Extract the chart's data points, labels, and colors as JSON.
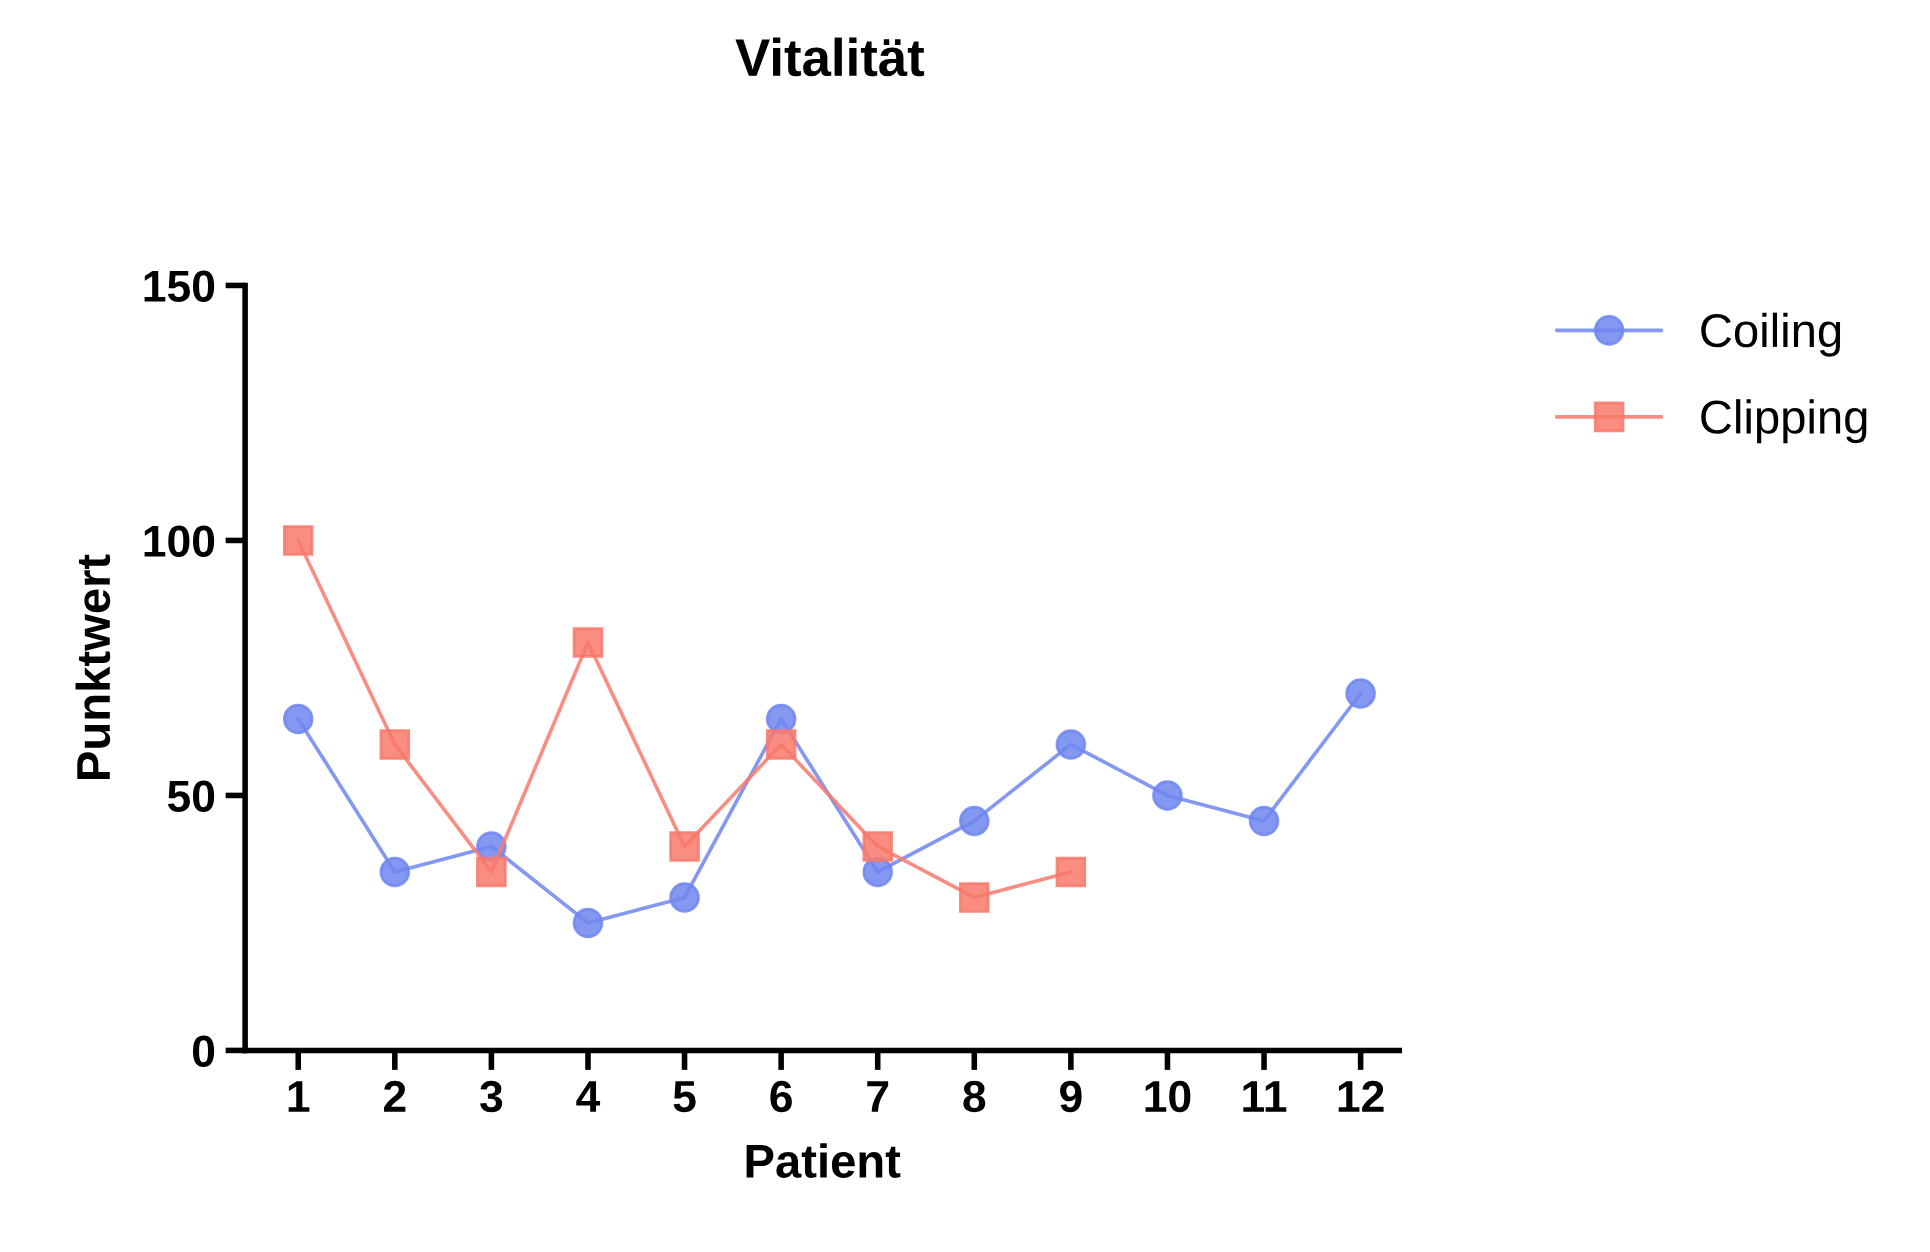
{
  "chart_data": {
    "type": "line",
    "title": "Vitalität",
    "xlabel": "Patient",
    "ylabel": "Punktwert",
    "categories": [
      "1",
      "2",
      "3",
      "4",
      "5",
      "6",
      "7",
      "8",
      "9",
      "10",
      "11",
      "12"
    ],
    "series": [
      {
        "name": "Coiling",
        "color": "#6f86f0",
        "marker": "circle",
        "values": [
          65,
          35,
          40,
          25,
          30,
          65,
          35,
          45,
          60,
          50,
          45,
          70
        ]
      },
      {
        "name": "Clipping",
        "color": "#f8796b",
        "marker": "square",
        "values": [
          100,
          60,
          35,
          80,
          40,
          60,
          40,
          30,
          35,
          null,
          null,
          null
        ]
      }
    ],
    "ylim": [
      0,
      150
    ],
    "yticks": [
      0,
      50,
      100,
      150
    ],
    "grid": false,
    "legend": "top right",
    "line_style": "solid"
  }
}
